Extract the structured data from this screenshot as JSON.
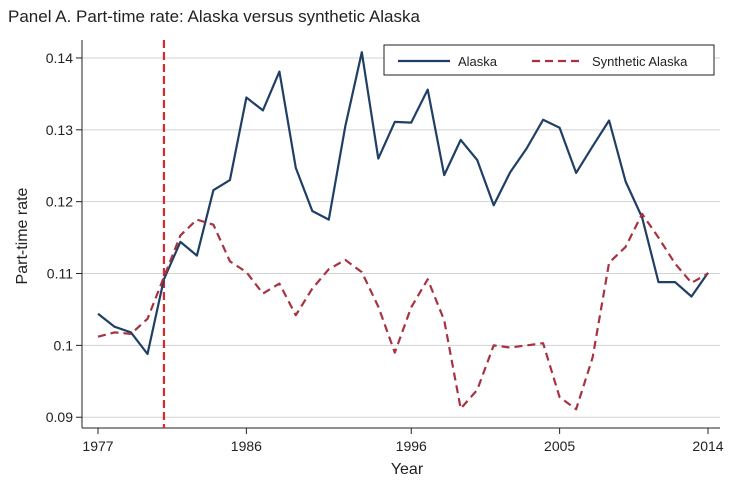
{
  "chart_data": {
    "type": "line",
    "title": "Panel A. Part-time rate: Alaska versus synthetic Alaska",
    "xlabel": "Year",
    "ylabel": "Part-time rate",
    "xlim": [
      1977,
      2014
    ],
    "ylim": [
      0.0885,
      0.1425
    ],
    "xticks": [
      1977,
      1986,
      1996,
      2005,
      2014
    ],
    "yticks": [
      0.09,
      0.1,
      0.11,
      0.12,
      0.13,
      0.14
    ],
    "ytick_labels": [
      "0.09",
      "0.1",
      "0.11",
      "0.12",
      "0.13",
      "0.14"
    ],
    "grid": "horizontal",
    "legend_position": "top-right",
    "vline": {
      "x": 1981,
      "color": "#d62b2b",
      "style": "dashed"
    },
    "x": [
      1977,
      1978,
      1979,
      1980,
      1981,
      1982,
      1983,
      1984,
      1985,
      1986,
      1987,
      1988,
      1989,
      1990,
      1991,
      1992,
      1993,
      1994,
      1995,
      1996,
      1997,
      1998,
      1999,
      2000,
      2001,
      2002,
      2003,
      2004,
      2005,
      2006,
      2007,
      2008,
      2009,
      2010,
      2011,
      2012,
      2013,
      2014
    ],
    "series": [
      {
        "name": "Alaska",
        "color": "#1f3f66",
        "dash": "solid",
        "values": [
          0.1044,
          0.1026,
          0.1018,
          0.0988,
          0.1092,
          0.1144,
          0.1125,
          0.1216,
          0.123,
          0.1345,
          0.1327,
          0.1381,
          0.1247,
          0.1187,
          0.1175,
          0.1305,
          0.1408,
          0.126,
          0.1311,
          0.131,
          0.1356,
          0.1237,
          0.1286,
          0.1258,
          0.1195,
          0.1241,
          0.1274,
          0.1314,
          0.1303,
          0.124,
          0.1277,
          0.1313,
          0.1228,
          0.1178,
          0.1088,
          0.1088,
          0.1068,
          0.1101
        ]
      },
      {
        "name": "Synthetic Alaska",
        "color": "#a83240",
        "dash": "dashed",
        "values": [
          0.1012,
          0.1018,
          0.1016,
          0.1037,
          0.1095,
          0.1153,
          0.1175,
          0.1168,
          0.1117,
          0.1102,
          0.1072,
          0.1086,
          0.1042,
          0.1079,
          0.1106,
          0.1119,
          0.1102,
          0.1054,
          0.099,
          0.1053,
          0.1092,
          0.1035,
          0.0912,
          0.0938,
          0.1,
          0.0997,
          0.1,
          0.1003,
          0.0928,
          0.0911,
          0.0983,
          0.1115,
          0.1137,
          0.1183,
          0.115,
          0.1114,
          0.1087,
          0.11
        ]
      }
    ]
  }
}
